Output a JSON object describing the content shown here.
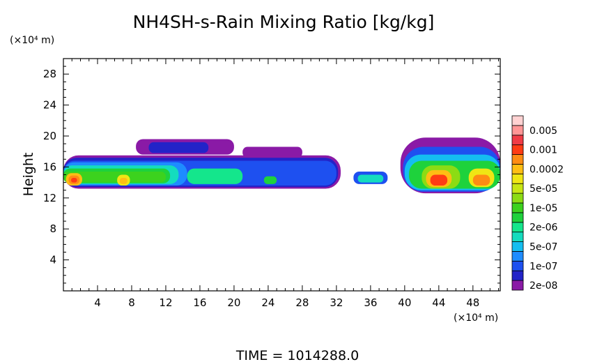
{
  "chart_data": {
    "type": "heatmap",
    "title": "NH4SH-s-Rain Mixing Ratio [kg/kg]",
    "ylabel": "Height",
    "x_unit_label": "(×10⁴ m)",
    "y_unit_label": "(×10⁴ m)",
    "footer": "TIME  =  1014288.0",
    "xlim": [
      0,
      51.2
    ],
    "ylim": [
      0,
      30
    ],
    "x_ticks": [
      4,
      8,
      12,
      16,
      20,
      24,
      28,
      32,
      36,
      40,
      44,
      48
    ],
    "y_ticks": [
      4,
      8,
      12,
      16,
      20,
      24,
      28
    ],
    "legend": {
      "placement": "right",
      "levels": [
        {
          "label": "2e-08",
          "color": "#8a1aa6"
        },
        {
          "label": "",
          "color": "#2323c8"
        },
        {
          "label": "1e-07",
          "color": "#1e50f0"
        },
        {
          "label": "",
          "color": "#1e8cff"
        },
        {
          "label": "5e-07",
          "color": "#14bef0"
        },
        {
          "label": "",
          "color": "#14dcbe"
        },
        {
          "label": "2e-06",
          "color": "#14e68c"
        },
        {
          "label": "",
          "color": "#1ed23c"
        },
        {
          "label": "1e-05",
          "color": "#3cd21e"
        },
        {
          "label": "",
          "color": "#8cdc14"
        },
        {
          "label": "5e-05",
          "color": "#c8e614"
        },
        {
          "label": "",
          "color": "#f0e614"
        },
        {
          "label": "0.0002",
          "color": "#ffbe14"
        },
        {
          "label": "",
          "color": "#ff8c14"
        },
        {
          "label": "0.001",
          "color": "#ff3c14"
        },
        {
          "label": "",
          "color": "#f03c46"
        },
        {
          "label": "0.005",
          "color": "#ff9696"
        },
        {
          "label": "",
          "color": "#ffd2d2"
        }
      ]
    },
    "regions": [
      {
        "x": [
          0,
          32.5
        ],
        "y": [
          13.2,
          17.5
        ],
        "level": 0
      },
      {
        "x": [
          0,
          32.2
        ],
        "y": [
          13.4,
          17.2
        ],
        "level": 1
      },
      {
        "x": [
          0,
          32.0
        ],
        "y": [
          13.6,
          16.8
        ],
        "level": 2
      },
      {
        "x": [
          8.5,
          20
        ],
        "y": [
          17.6,
          19.6
        ],
        "level": 0
      },
      {
        "x": [
          10,
          17
        ],
        "y": [
          17.8,
          19.2
        ],
        "level": 1
      },
      {
        "x": [
          21,
          28
        ],
        "y": [
          17.2,
          18.6
        ],
        "level": 0
      },
      {
        "x": [
          0,
          14.5
        ],
        "y": [
          13.6,
          16.6
        ],
        "level": 3
      },
      {
        "x": [
          0,
          13.5
        ],
        "y": [
          13.8,
          16.2
        ],
        "level": 5
      },
      {
        "x": [
          0,
          12.5
        ],
        "y": [
          13.9,
          15.8
        ],
        "level": 7
      },
      {
        "x": [
          0,
          12.0
        ],
        "y": [
          14.0,
          15.4
        ],
        "level": 8
      },
      {
        "x": [
          14.5,
          21
        ],
        "y": [
          13.8,
          15.8
        ],
        "level": 6
      },
      {
        "x": [
          23.5,
          25
        ],
        "y": [
          13.8,
          14.8
        ],
        "level": 7
      },
      {
        "x": [
          6.3,
          7.8
        ],
        "y": [
          13.6,
          15.0
        ],
        "level": 11
      },
      {
        "x": [
          6.6,
          7.5
        ],
        "y": [
          13.8,
          14.6
        ],
        "level": 12
      },
      {
        "x": [
          0.3,
          2.2
        ],
        "y": [
          13.6,
          15.2
        ],
        "level": 12
      },
      {
        "x": [
          0.6,
          1.9
        ],
        "y": [
          13.8,
          14.9
        ],
        "level": 13
      },
      {
        "x": [
          0.9,
          1.6
        ],
        "y": [
          14.0,
          14.6
        ],
        "level": 14
      },
      {
        "x": [
          34,
          38
        ],
        "y": [
          13.8,
          15.4
        ],
        "level": 2
      },
      {
        "x": [
          34.5,
          37.5
        ],
        "y": [
          14.0,
          15.0
        ],
        "level": 5
      },
      {
        "x": [
          39.5,
          51.2
        ],
        "y": [
          12.6,
          19.8
        ],
        "level": 0
      },
      {
        "x": [
          39.8,
          51.2
        ],
        "y": [
          12.8,
          18.6
        ],
        "level": 2
      },
      {
        "x": [
          40,
          51.2
        ],
        "y": [
          13.0,
          17.6
        ],
        "level": 4
      },
      {
        "x": [
          40.5,
          51.2
        ],
        "y": [
          13.2,
          16.8
        ],
        "level": 7
      },
      {
        "x": [
          42,
          46.5
        ],
        "y": [
          13.2,
          16.2
        ],
        "level": 9
      },
      {
        "x": [
          42.5,
          45.5
        ],
        "y": [
          13.4,
          15.6
        ],
        "level": 12
      },
      {
        "x": [
          43,
          45
        ],
        "y": [
          13.6,
          15.0
        ],
        "level": 14
      },
      {
        "x": [
          47.5,
          50.5
        ],
        "y": [
          13.4,
          15.8
        ],
        "level": 11
      },
      {
        "x": [
          48,
          50
        ],
        "y": [
          13.6,
          15.0
        ],
        "level": 13
      }
    ]
  }
}
